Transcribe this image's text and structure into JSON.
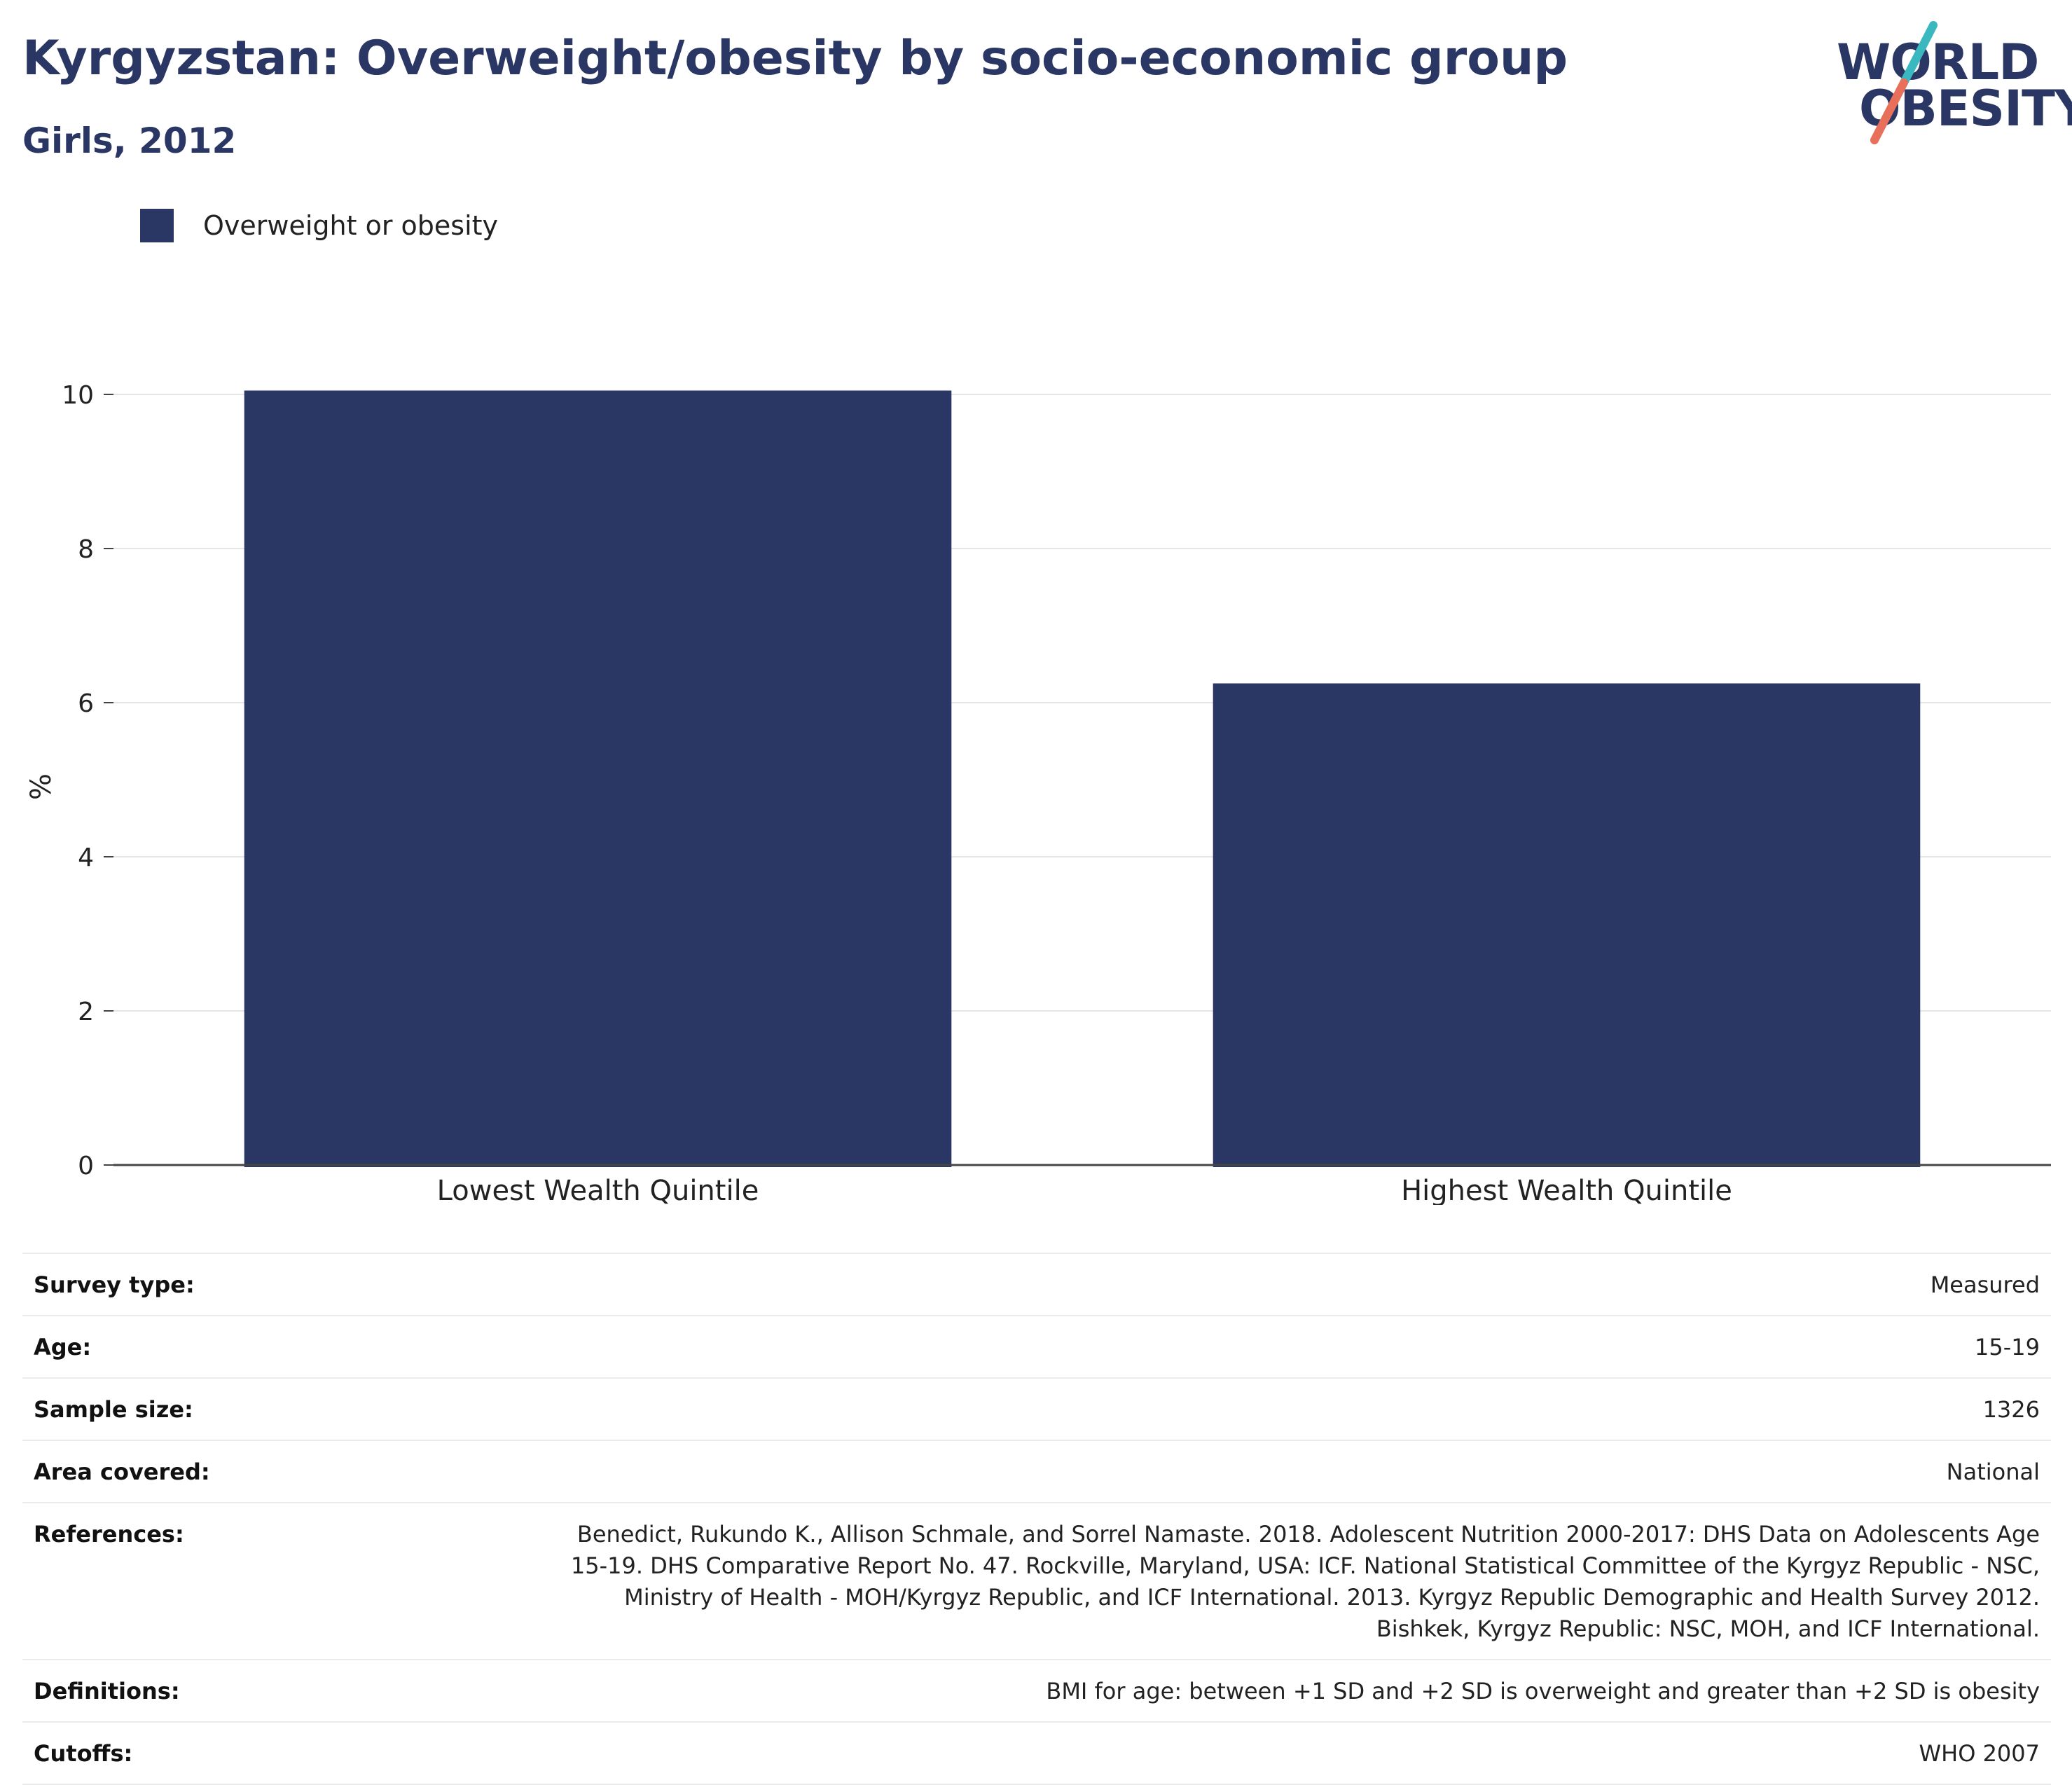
{
  "header": {
    "title": "Kyrgyzstan: Overweight/obesity by socio-economic group",
    "subtitle": "Girls, 2012"
  },
  "logo": {
    "line1": "WORLD",
    "line2": "OBESITY",
    "accent_colors": [
      "#3ab8c0",
      "#e8705a"
    ]
  },
  "legend": {
    "label": "Overweight or obesity",
    "color": "#2a3663"
  },
  "chart_data": {
    "type": "bar",
    "categories": [
      "Lowest Wealth Quintile",
      "Highest Wealth Quintile"
    ],
    "series": [
      {
        "name": "Overweight or obesity",
        "values": [
          10.05,
          6.25
        ],
        "color": "#2a3663"
      }
    ],
    "title": "Kyrgyzstan: Overweight/obesity by socio-economic group",
    "subtitle": "Girls, 2012",
    "xlabel": "",
    "ylabel": "%",
    "ylim": [
      0,
      10.5
    ],
    "yticks": [
      0,
      2,
      4,
      6,
      8,
      10
    ],
    "grid": true,
    "legend_position": "top-left"
  },
  "meta": {
    "rows": [
      {
        "label": "Survey type:",
        "value": "Measured"
      },
      {
        "label": "Age:",
        "value": "15-19"
      },
      {
        "label": "Sample size:",
        "value": "1326"
      },
      {
        "label": "Area covered:",
        "value": "National"
      },
      {
        "label": "References:",
        "value": "Benedict, Rukundo K., Allison Schmale, and Sorrel Namaste. 2018. Adolescent Nutrition 2000-2017: DHS Data on Adolescents Age 15-19. DHS Comparative Report No. 47. Rockville, Maryland, USA: ICF. National Statistical Committee of the Kyrgyz Republic - NSC, Ministry of Health - MOH/Kyrgyz Republic, and ICF International. 2013. Kyrgyz Republic Demographic and Health Survey 2012. Bishkek, Kyrgyz Republic: NSC, MOH, and ICF International."
      },
      {
        "label": "Definitions:",
        "value": "BMI for age: between +1 SD and +2 SD is overweight and greater than +2 SD is obesity"
      },
      {
        "label": "Cutoffs:",
        "value": "WHO 2007"
      }
    ]
  }
}
